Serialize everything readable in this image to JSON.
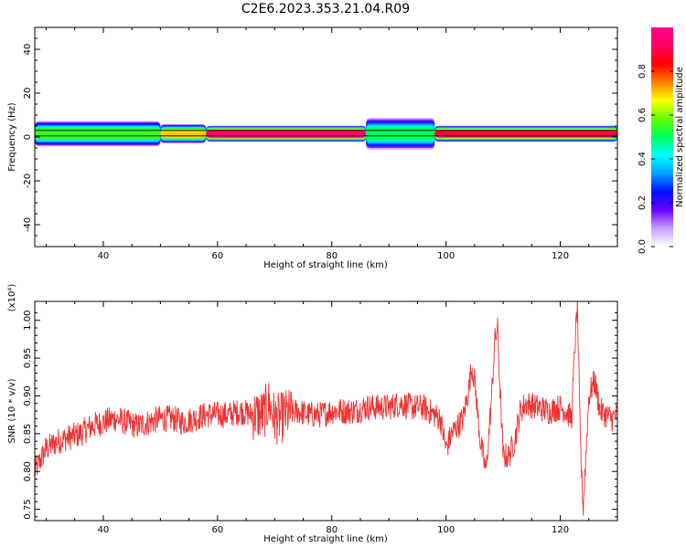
{
  "title": "C2E6.2023.353.21.04.R09",
  "chart_data": [
    {
      "type": "heatmap",
      "xlabel": "Height of straight line (km)",
      "ylabel": "Frequency (Hz)",
      "xlim": [
        28,
        130
      ],
      "ylim": [
        -50,
        50
      ],
      "x_ticks": [
        40,
        60,
        80,
        100,
        120
      ],
      "y_ticks": [
        -40,
        -20,
        0,
        20,
        40
      ],
      "colorbar": {
        "label": "Normalized spectral amplitude",
        "range": [
          0,
          1
        ],
        "ticks": [
          "0.0",
          "0.2",
          "0.4",
          "0.6",
          "0.8"
        ],
        "colors": [
          "#ffffff",
          "#c8a0ff",
          "#6a00ff",
          "#0010ff",
          "#00a0ff",
          "#00ffff",
          "#00ff60",
          "#60ff00",
          "#ffff00",
          "#ff8000",
          "#ff0000",
          "#ff0060",
          "#ff0090"
        ]
      },
      "ridge": {
        "frequency_hz": [
          1,
          1.5,
          2
        ],
        "segments": [
          {
            "x_start": 28,
            "x_end": 50,
            "level": 0.55,
            "halfwidth_hz": 4
          },
          {
            "x_start": 50,
            "x_end": 58,
            "level": 0.7,
            "halfwidth_hz": 3
          },
          {
            "x_start": 58,
            "x_end": 86,
            "level": 0.95,
            "halfwidth_hz": 2.5
          },
          {
            "x_start": 86,
            "x_end": 98,
            "level": 0.5,
            "halfwidth_hz": 5
          },
          {
            "x_start": 98,
            "x_end": 130,
            "level": 0.9,
            "halfwidth_hz": 2.5
          }
        ]
      }
    },
    {
      "type": "line",
      "xlabel": "Height of straight line (km)",
      "ylabel": "SNR (10 * v/v)",
      "y_multiplier": "(x10⁴)",
      "xlim": [
        28,
        130
      ],
      "ylim": [
        0.735,
        1.025
      ],
      "x_ticks": [
        40,
        60,
        80,
        100,
        120
      ],
      "y_ticks": [
        "0.75",
        "0.80",
        "0.85",
        "0.90",
        "0.95",
        "1.00"
      ],
      "series": [
        {
          "color": "#ee3333",
          "x": [
            28,
            30,
            32,
            34,
            36,
            38,
            40,
            42,
            44,
            46,
            48,
            50,
            52,
            54,
            56,
            58,
            60,
            62,
            64,
            66,
            68,
            69,
            70,
            71,
            72,
            74,
            76,
            78,
            80,
            82,
            84,
            86,
            88,
            90,
            92,
            94,
            96,
            98,
            99,
            100,
            101,
            102,
            103,
            104,
            104.5,
            105,
            106,
            107,
            108,
            108.5,
            109,
            109.5,
            110,
            111,
            112,
            113,
            114,
            116,
            118,
            120,
            121,
            122,
            122.5,
            123,
            123.5,
            124,
            125,
            126,
            127,
            128,
            129,
            130
          ],
          "values": [
            0.8,
            0.83,
            0.84,
            0.845,
            0.85,
            0.86,
            0.865,
            0.87,
            0.865,
            0.86,
            0.865,
            0.87,
            0.87,
            0.865,
            0.87,
            0.875,
            0.875,
            0.875,
            0.88,
            0.875,
            0.875,
            0.89,
            0.87,
            0.87,
            0.875,
            0.88,
            0.875,
            0.875,
            0.88,
            0.88,
            0.88,
            0.885,
            0.885,
            0.885,
            0.89,
            0.885,
            0.885,
            0.875,
            0.87,
            0.83,
            0.85,
            0.86,
            0.87,
            0.91,
            0.94,
            0.92,
            0.84,
            0.8,
            0.9,
            0.97,
            0.99,
            0.9,
            0.82,
            0.82,
            0.84,
            0.88,
            0.89,
            0.885,
            0.88,
            0.885,
            0.88,
            0.87,
            0.96,
            1.02,
            0.84,
            0.75,
            0.9,
            0.92,
            0.88,
            0.875,
            0.87,
            0.875
          ]
        }
      ]
    }
  ]
}
